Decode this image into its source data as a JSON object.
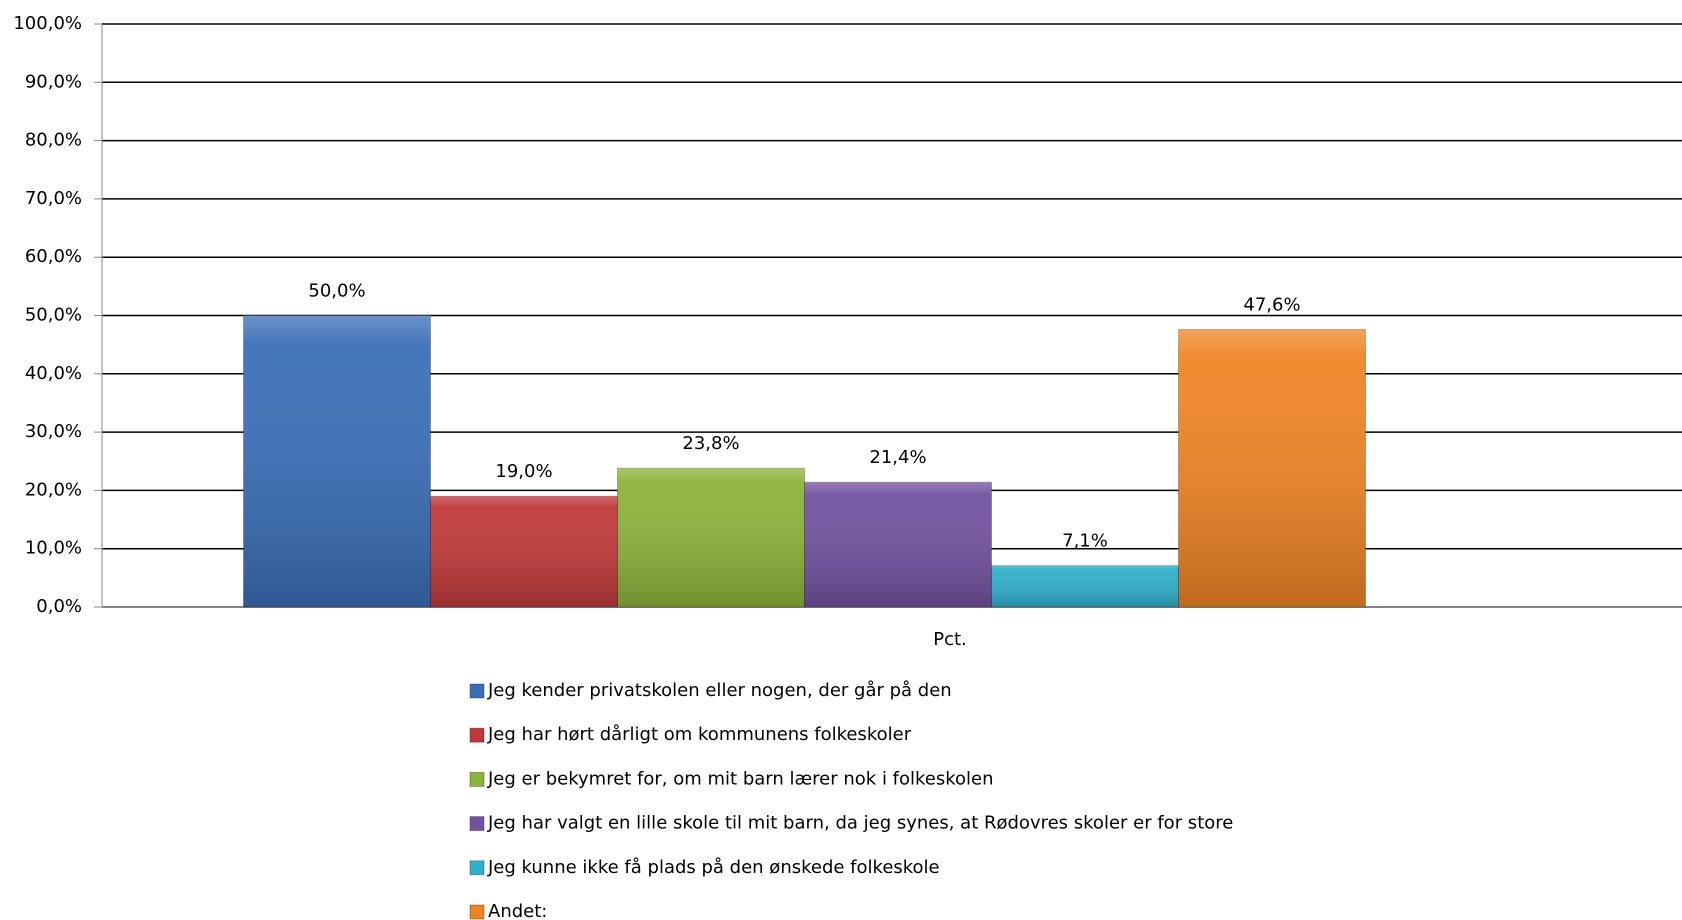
{
  "chart_data": {
    "type": "bar",
    "categories": [
      "Pct."
    ],
    "series": [
      {
        "name": "Jeg kender privatskolen eller nogen, der går på den",
        "color": "#3a6fb8",
        "values": [
          50.0
        ],
        "value_labels": [
          "50,0%"
        ]
      },
      {
        "name": "Jeg har hørt dårligt om kommunens folkeskoler",
        "color": "#c0393a",
        "values": [
          19.0
        ],
        "value_labels": [
          "19,0%"
        ]
      },
      {
        "name": "Jeg er bekymret for, om mit barn lærer nok i folkeskolen",
        "color": "#8db33b",
        "values": [
          23.8
        ],
        "value_labels": [
          "23,8%"
        ]
      },
      {
        "name": "Jeg har valgt en lille skole til mit barn, da jeg synes, at Rødovres skoler er for store",
        "color": "#7352a0",
        "values": [
          21.4
        ],
        "value_labels": [
          "21,4%"
        ]
      },
      {
        "name": "Jeg kunne ikke få plads på den ønskede folkeskole",
        "color": "#2fb0cc",
        "values": [
          7.1
        ],
        "value_labels": [
          "7,1%"
        ]
      },
      {
        "name": "Andet:",
        "color": "#f08425",
        "values": [
          47.6
        ],
        "value_labels": [
          "47,6%"
        ]
      }
    ],
    "ylim": [
      0,
      100
    ],
    "yticks": [
      {
        "value": 0,
        "label": "0,0%"
      },
      {
        "value": 10,
        "label": "10,0%"
      },
      {
        "value": 20,
        "label": "20,0%"
      },
      {
        "value": 30,
        "label": "30,0%"
      },
      {
        "value": 40,
        "label": "40,0%"
      },
      {
        "value": 50,
        "label": "50,0%"
      },
      {
        "value": 60,
        "label": "60,0%"
      },
      {
        "value": 70,
        "label": "70,0%"
      },
      {
        "value": 80,
        "label": "80,0%"
      },
      {
        "value": 90,
        "label": "90,0%"
      },
      {
        "value": 100,
        "label": "100,0%"
      }
    ],
    "grid": true,
    "legend": "bottom"
  }
}
